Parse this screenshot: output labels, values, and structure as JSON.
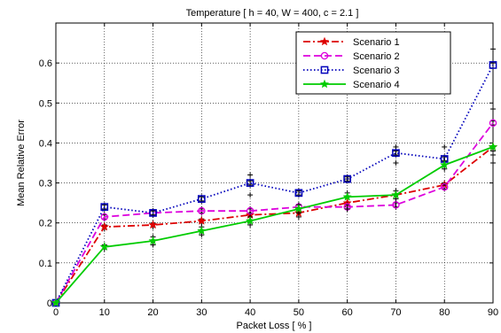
{
  "chart_data": {
    "type": "line",
    "title": "Temperature [ h = 40, W = 400, c = 2.1 ]",
    "xlabel": "Packet Loss [ % ]",
    "ylabel": "Mean Relative Error",
    "xlim": [
      0,
      90
    ],
    "ylim": [
      0,
      0.7
    ],
    "xticks": [
      0,
      10,
      20,
      30,
      40,
      50,
      60,
      70,
      80,
      90
    ],
    "yticks": [
      0,
      0.1,
      0.2,
      0.3,
      0.4,
      0.5,
      0.6
    ],
    "ytick_labels": [
      "0",
      "0.1",
      "0.2",
      "0.3",
      "0.4",
      "0.5",
      "0.6"
    ],
    "grid": true,
    "legend_position": "top-right",
    "x": [
      0,
      10,
      20,
      30,
      40,
      50,
      60,
      70,
      80,
      90
    ],
    "series": [
      {
        "name": "Scenario 1",
        "color": "#dd0000",
        "dash": "dash-dot",
        "marker": "star",
        "values": [
          0,
          0.19,
          0.195,
          0.205,
          0.22,
          0.225,
          0.25,
          0.27,
          0.295,
          0.39
        ],
        "error_lo": [
          0,
          0.185,
          0.19,
          0.2,
          0.27,
          0.215,
          0.24,
          0.35,
          0.3,
          0.35
        ],
        "error_hi": [
          0,
          0.195,
          0.2,
          0.21,
          0.32,
          0.23,
          0.31,
          0.39,
          0.39,
          0.635
        ]
      },
      {
        "name": "Scenario 2",
        "color": "#dd00dd",
        "dash": "dashed",
        "marker": "circle",
        "values": [
          0,
          0.215,
          0.225,
          0.23,
          0.23,
          0.24,
          0.24,
          0.245,
          0.29,
          0.45
        ],
        "error_lo": [
          0,
          0.21,
          0.22,
          0.225,
          0.225,
          0.235,
          0.235,
          0.24,
          0.285,
          0.445
        ],
        "error_hi": [
          0,
          0.22,
          0.23,
          0.235,
          0.235,
          0.245,
          0.245,
          0.25,
          0.295,
          0.455
        ]
      },
      {
        "name": "Scenario 3",
        "color": "#0000bb",
        "dash": "dotted",
        "marker": "square",
        "values": [
          0,
          0.24,
          0.225,
          0.26,
          0.3,
          0.275,
          0.31,
          0.375,
          0.36,
          0.595
        ],
        "error_lo": [
          0,
          0.235,
          0.22,
          0.255,
          0.295,
          0.27,
          0.305,
          0.37,
          0.355,
          0.37
        ],
        "error_hi": [
          0,
          0.245,
          0.23,
          0.265,
          0.305,
          0.28,
          0.315,
          0.38,
          0.365,
          0.6
        ]
      },
      {
        "name": "Scenario 4",
        "color": "#00cc00",
        "dash": "solid",
        "marker": "star",
        "values": [
          0,
          0.14,
          0.155,
          0.18,
          0.205,
          0.235,
          0.265,
          0.27,
          0.345,
          0.39
        ],
        "error_lo": [
          0,
          0.135,
          0.145,
          0.17,
          0.195,
          0.225,
          0.235,
          0.26,
          0.335,
          0.38
        ],
        "error_hi": [
          0,
          0.145,
          0.165,
          0.19,
          0.215,
          0.245,
          0.275,
          0.28,
          0.355,
          0.485
        ]
      }
    ]
  }
}
